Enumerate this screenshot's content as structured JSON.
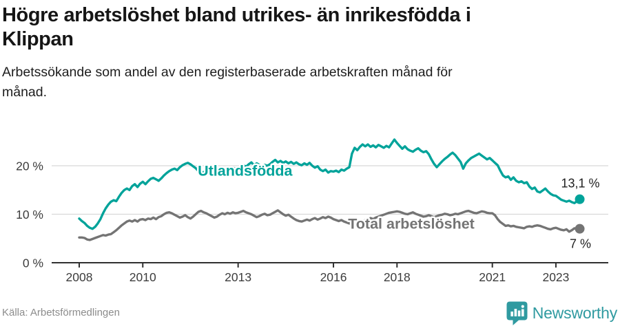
{
  "header": {
    "title": "Högre arbetslöshet bland utrikes- än inrikesfödda i Klippan",
    "title_lines": [
      "Högre arbetslöshet bland utrikes- än inrikesfödda i",
      "Klippan"
    ],
    "subtitle": "Arbetssökande som andel av den registerbaserade arbetskraften månad för månad.",
    "subtitle_lines": [
      "Arbetssökande som andel av den registerbaserade arbetskraften månad för",
      "månad."
    ]
  },
  "footer": {
    "source": "Källa: Arbetsförmedlingen",
    "brand": "Newsworthy",
    "brand_color": "#2f9aa0",
    "badge_icon": "newsworthy-bar-chart-pin"
  },
  "chart_data": {
    "type": "line",
    "title": "Högre arbetslöshet bland utrikes- än inrikesfödda i Klippan",
    "xlabel": "",
    "ylabel": "",
    "y_unit": "%",
    "xlim": [
      2008,
      2023.75
    ],
    "ylim": [
      0,
      26
    ],
    "grid": "horizontal",
    "legend_position": "inline-labels",
    "colors": {
      "grid": "#d8d8d8",
      "axis": "#2f2f2f",
      "tick_text": "#3c3c3c",
      "end_label_text": "#1f1f1f",
      "halo": "#ffffff"
    },
    "y_ticks": [
      {
        "value": 0,
        "label": "0 %"
      },
      {
        "value": 10,
        "label": "10 %"
      },
      {
        "value": 20,
        "label": "20 %"
      }
    ],
    "x_ticks": [
      {
        "value": 2008,
        "label": "2008"
      },
      {
        "value": 2010,
        "label": "2010"
      },
      {
        "value": 2013,
        "label": "2013"
      },
      {
        "value": 2016,
        "label": "2016"
      },
      {
        "value": 2018,
        "label": "2018"
      },
      {
        "value": 2021,
        "label": "2021"
      },
      {
        "value": 2023,
        "label": "2023"
      }
    ],
    "series": [
      {
        "id": "utlandsfodda",
        "name": "Utlandsfödda",
        "color": "#00a39a",
        "start_year": 2008,
        "step_months": 1,
        "end_value": 13.1,
        "end_label": "13,1 %",
        "end_label_side": "above",
        "label_pos": {
          "x": 2013.22,
          "y": 19.0
        },
        "values": [
          9.1,
          8.6,
          8.2,
          7.6,
          7.2,
          7.0,
          7.4,
          8.1,
          9.0,
          10.2,
          11.2,
          12.0,
          12.6,
          12.9,
          12.7,
          13.6,
          14.4,
          15.0,
          15.3,
          15.0,
          15.8,
          16.2,
          15.6,
          16.3,
          16.7,
          16.2,
          16.8,
          17.3,
          17.5,
          17.2,
          16.9,
          17.4,
          18.0,
          18.5,
          18.9,
          19.2,
          19.4,
          19.1,
          19.7,
          20.1,
          20.4,
          20.6,
          20.3,
          19.9,
          19.5,
          18.9,
          18.6,
          18.7,
          18.9,
          19.2,
          18.8,
          19.1,
          19.4,
          19.1,
          18.9,
          19.2,
          19.5,
          19.3,
          19.6,
          19.4,
          19.3,
          19.7,
          20.1,
          19.8,
          20.3,
          20.7,
          20.1,
          20.5,
          20.2,
          19.9,
          20.2,
          20.0,
          20.3,
          20.8,
          21.2,
          20.7,
          21.0,
          20.6,
          20.9,
          20.5,
          20.8,
          20.4,
          20.7,
          20.3,
          20.1,
          20.5,
          20.2,
          20.6,
          20.0,
          19.6,
          19.9,
          19.2,
          18.9,
          19.2,
          18.6,
          18.9,
          18.8,
          19.0,
          18.7,
          19.2,
          19.0,
          19.4,
          19.7,
          22.5,
          23.7,
          23.2,
          23.9,
          24.4,
          24.0,
          24.4,
          23.9,
          24.2,
          23.8,
          24.3,
          24.0,
          23.7,
          24.1,
          23.8,
          24.6,
          25.4,
          24.7,
          24.1,
          23.5,
          24.0,
          23.4,
          23.1,
          22.9,
          23.3,
          23.6,
          23.1,
          22.8,
          23.0,
          22.4,
          21.3,
          20.4,
          19.7,
          20.3,
          20.9,
          21.4,
          21.8,
          22.3,
          22.7,
          22.2,
          21.5,
          20.8,
          19.4,
          20.5,
          21.1,
          21.6,
          21.9,
          22.2,
          22.5,
          22.1,
          21.7,
          21.3,
          21.6,
          21.1,
          20.6,
          20.1,
          19.0,
          18.0,
          17.6,
          17.8,
          17.1,
          17.6,
          16.9,
          16.6,
          16.8,
          16.4,
          16.6,
          15.7,
          15.2,
          15.5,
          14.7,
          14.5,
          14.9,
          15.3,
          14.7,
          14.2,
          13.9,
          13.8,
          13.4,
          13.0,
          12.8,
          12.6,
          12.8,
          12.5,
          12.3,
          12.7,
          13.1
        ]
      },
      {
        "id": "total",
        "name": "Total arbetslöshet",
        "color": "#747474",
        "start_year": 2008,
        "step_months": 1,
        "end_value": 7.0,
        "end_label": "7 %",
        "end_label_side": "below",
        "label_pos": {
          "x": 2018.45,
          "y": 8.08
        },
        "values": [
          5.2,
          5.2,
          5.1,
          4.8,
          4.7,
          4.9,
          5.1,
          5.3,
          5.5,
          5.7,
          5.6,
          5.8,
          5.9,
          6.3,
          6.7,
          7.2,
          7.7,
          8.1,
          8.5,
          8.7,
          8.5,
          8.8,
          8.5,
          8.9,
          9.0,
          8.8,
          9.1,
          9.0,
          9.3,
          9.0,
          9.4,
          9.6,
          10.0,
          10.3,
          10.4,
          10.2,
          9.9,
          9.6,
          9.3,
          9.5,
          9.8,
          9.4,
          9.1,
          9.5,
          10.0,
          10.5,
          10.7,
          10.4,
          10.2,
          9.9,
          9.6,
          9.3,
          9.5,
          9.9,
          10.2,
          10.0,
          10.3,
          10.1,
          10.4,
          10.2,
          10.3,
          10.5,
          10.7,
          10.4,
          10.2,
          10.0,
          9.7,
          9.4,
          9.6,
          9.9,
          10.1,
          9.8,
          9.9,
          10.2,
          10.5,
          10.8,
          10.4,
          10.0,
          9.7,
          9.9,
          9.5,
          9.1,
          8.8,
          8.6,
          8.5,
          8.7,
          8.9,
          8.7,
          9.0,
          9.2,
          8.9,
          9.1,
          9.4,
          9.2,
          9.5,
          9.3,
          9.0,
          8.8,
          8.6,
          8.8,
          8.5,
          8.3,
          8.1,
          8.2,
          8.0,
          8.1,
          8.3,
          8.5,
          8.8,
          9.0,
          9.2,
          9.0,
          9.3,
          9.5,
          9.7,
          9.9,
          10.1,
          10.3,
          10.4,
          10.5,
          10.6,
          10.5,
          10.3,
          10.1,
          10.0,
          10.2,
          10.4,
          10.1,
          9.9,
          9.7,
          9.5,
          9.6,
          9.8,
          9.6,
          9.4,
          9.6,
          9.8,
          9.9,
          10.1,
          10.0,
          9.8,
          9.9,
          10.1,
          10.0,
          10.2,
          10.4,
          10.6,
          10.7,
          10.5,
          10.3,
          10.2,
          10.4,
          10.6,
          10.5,
          10.3,
          10.2,
          10.2,
          9.8,
          9.0,
          8.4,
          8.0,
          7.6,
          7.7,
          7.5,
          7.6,
          7.4,
          7.3,
          7.2,
          7.1,
          7.4,
          7.5,
          7.4,
          7.6,
          7.7,
          7.6,
          7.4,
          7.2,
          7.0,
          6.9,
          7.1,
          7.2,
          7.0,
          6.8,
          6.7,
          6.9,
          6.4,
          6.7,
          7.1,
          6.9,
          7.0
        ]
      }
    ]
  }
}
